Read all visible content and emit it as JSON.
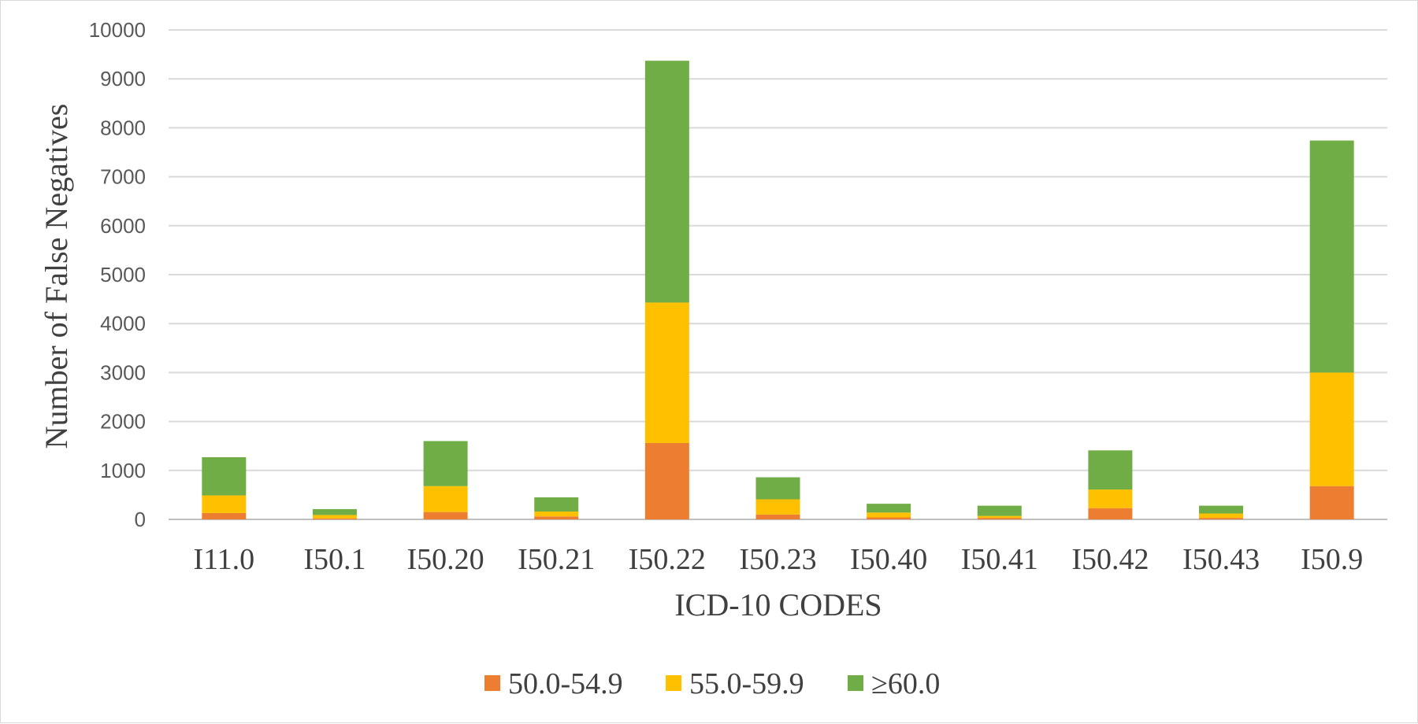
{
  "chart_data": {
    "type": "bar",
    "stacked": true,
    "title": "",
    "xlabel": "ICD-10 CODES",
    "ylabel": "Number of False Negatives",
    "ylim": [
      0,
      10000
    ],
    "yticks": [
      "0",
      "1000",
      "2000",
      "3000",
      "4000",
      "5000",
      "6000",
      "7000",
      "8000",
      "9000",
      "10000"
    ],
    "grid": true,
    "legend_position": "bottom",
    "categories": [
      "I11.0",
      "I50.1",
      "I50.20",
      "I50.21",
      "I50.22",
      "I50.23",
      "I50.40",
      "I50.41",
      "I50.42",
      "I50.43",
      "I50.9"
    ],
    "series": [
      {
        "name": "50.0-54.9",
        "color": "#ED7D31",
        "values": [
          130,
          20,
          150,
          60,
          1560,
          100,
          40,
          30,
          230,
          30,
          680
        ]
      },
      {
        "name": "55.0-59.9",
        "color": "#FFC000",
        "values": [
          360,
          70,
          530,
          100,
          2870,
          310,
          100,
          40,
          380,
          90,
          2320
        ]
      },
      {
        "name": "≥60.0",
        "color": "#70AD47",
        "values": [
          780,
          120,
          920,
          290,
          4940,
          450,
          180,
          210,
          800,
          160,
          4740
        ]
      }
    ]
  }
}
